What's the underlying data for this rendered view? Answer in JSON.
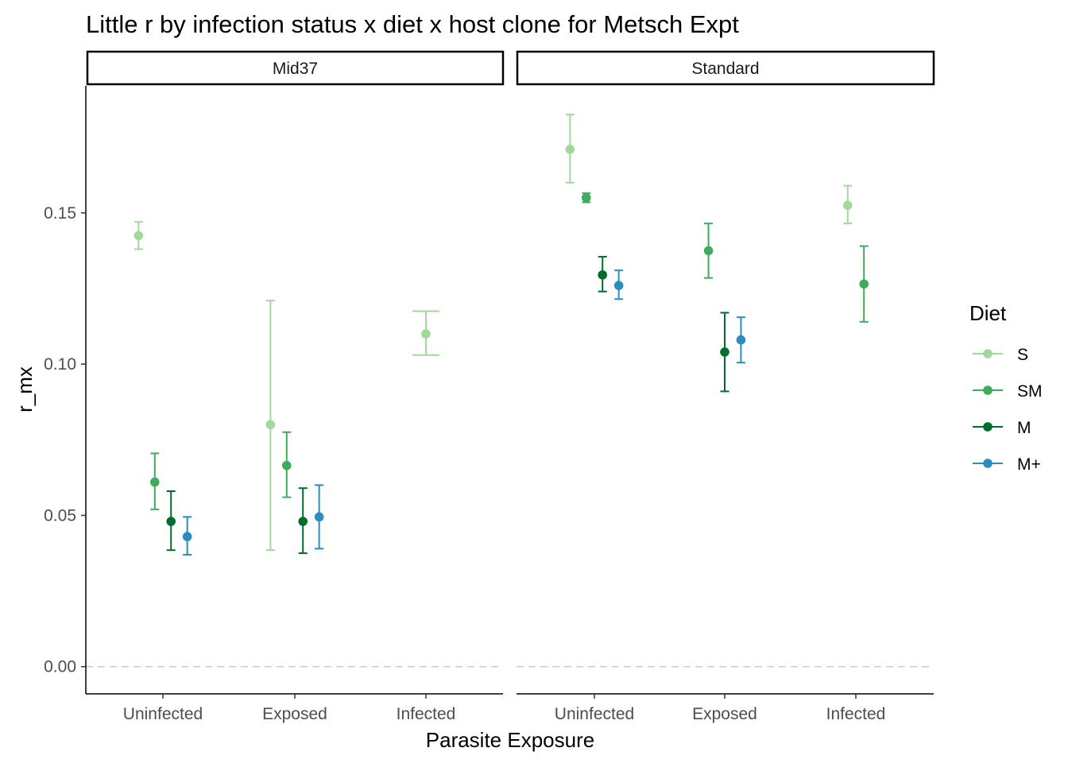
{
  "chart_data": {
    "type": "scatter",
    "title": "Little r by infection status x diet x host clone for Metsch Expt",
    "xlabel": "Parasite Exposure",
    "ylabel": "r_mx",
    "categories": [
      "Uninfected",
      "Exposed",
      "Infected"
    ],
    "y_ticks": [
      "0.00",
      "0.05",
      "0.10",
      "0.15"
    ],
    "y_tick_values": [
      0.0,
      0.05,
      0.1,
      0.15
    ],
    "ylim": [
      -0.009,
      0.192
    ],
    "reference_line": 0.0,
    "grid": false,
    "legend": {
      "title": "Diet",
      "position": "right"
    },
    "series": [
      {
        "name": "S",
        "color": "#a1d99b"
      },
      {
        "name": "SM",
        "color": "#41ab5d"
      },
      {
        "name": "M",
        "color": "#006d2c"
      },
      {
        "name": "M+",
        "color": "#2b8cbe"
      }
    ],
    "panels": [
      {
        "label": "Mid37",
        "points": [
          {
            "category": "Uninfected",
            "series": "S",
            "y": 0.1425,
            "lower": 0.138,
            "upper": 0.147
          },
          {
            "category": "Uninfected",
            "series": "SM",
            "y": 0.061,
            "lower": 0.052,
            "upper": 0.0705
          },
          {
            "category": "Uninfected",
            "series": "M",
            "y": 0.048,
            "lower": 0.0385,
            "upper": 0.058
          },
          {
            "category": "Uninfected",
            "series": "M+",
            "y": 0.043,
            "lower": 0.037,
            "upper": 0.0495
          },
          {
            "category": "Exposed",
            "series": "S",
            "y": 0.08,
            "lower": 0.0385,
            "upper": 0.121
          },
          {
            "category": "Exposed",
            "series": "SM",
            "y": 0.0665,
            "lower": 0.056,
            "upper": 0.0775
          },
          {
            "category": "Exposed",
            "series": "M",
            "y": 0.048,
            "lower": 0.0375,
            "upper": 0.059
          },
          {
            "category": "Exposed",
            "series": "M+",
            "y": 0.0495,
            "lower": 0.039,
            "upper": 0.06
          },
          {
            "category": "Infected",
            "series": "S",
            "y": 0.11,
            "lower": 0.103,
            "upper": 0.1175
          }
        ]
      },
      {
        "label": "Standard",
        "points": [
          {
            "category": "Uninfected",
            "series": "S",
            "y": 0.171,
            "lower": 0.16,
            "upper": 0.1825
          },
          {
            "category": "Uninfected",
            "series": "SM",
            "y": 0.155,
            "lower": 0.1535,
            "upper": 0.1565
          },
          {
            "category": "Uninfected",
            "series": "M",
            "y": 0.1295,
            "lower": 0.124,
            "upper": 0.1355
          },
          {
            "category": "Uninfected",
            "series": "M+",
            "y": 0.126,
            "lower": 0.1215,
            "upper": 0.131
          },
          {
            "category": "Exposed",
            "series": "SM",
            "y": 0.1375,
            "lower": 0.1285,
            "upper": 0.1465
          },
          {
            "category": "Exposed",
            "series": "M",
            "y": 0.104,
            "lower": 0.091,
            "upper": 0.117
          },
          {
            "category": "Exposed",
            "series": "M+",
            "y": 0.108,
            "lower": 0.1005,
            "upper": 0.1155
          },
          {
            "category": "Infected",
            "series": "S",
            "y": 0.1525,
            "lower": 0.1465,
            "upper": 0.159
          },
          {
            "category": "Infected",
            "series": "SM",
            "y": 0.1265,
            "lower": 0.114,
            "upper": 0.139
          }
        ]
      }
    ]
  }
}
